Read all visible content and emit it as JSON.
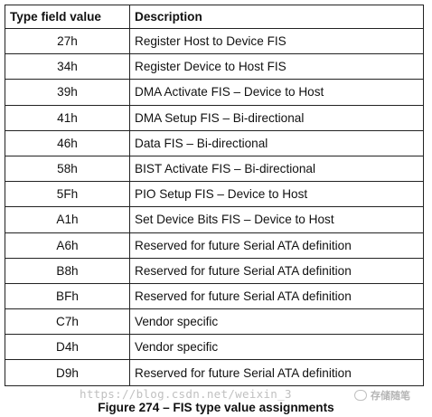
{
  "table": {
    "headers": {
      "type": "Type field value",
      "description": "Description"
    },
    "rows": [
      {
        "type": "27h",
        "description": "Register Host to Device FIS"
      },
      {
        "type": "34h",
        "description": "Register Device to Host FIS"
      },
      {
        "type": "39h",
        "description": "DMA Activate FIS – Device to Host"
      },
      {
        "type": "41h",
        "description": "DMA Setup FIS – Bi-directional"
      },
      {
        "type": "46h",
        "description": "Data FIS – Bi-directional"
      },
      {
        "type": "58h",
        "description": "BIST Activate FIS – Bi-directional"
      },
      {
        "type": "5Fh",
        "description": "PIO Setup FIS – Device to Host"
      },
      {
        "type": "A1h",
        "description": "Set Device Bits FIS – Device to Host"
      },
      {
        "type": "A6h",
        "description": "Reserved for future Serial ATA definition"
      },
      {
        "type": "B8h",
        "description": "Reserved for future Serial ATA definition"
      },
      {
        "type": "BFh",
        "description": "Reserved for future Serial ATA definition"
      },
      {
        "type": "C7h",
        "description": "Vendor specific"
      },
      {
        "type": "D4h",
        "description": "Vendor specific"
      },
      {
        "type": "D9h",
        "description": "Reserved for future Serial ATA definition"
      }
    ]
  },
  "caption": "Figure 274 – FIS type value assignments",
  "watermark": {
    "url": "https://blog.csdn.net/weixin_3",
    "brand": "存储随笔"
  }
}
